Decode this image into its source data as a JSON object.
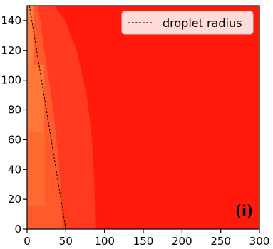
{
  "chart_data": {
    "type": "heatmap",
    "panel_label": "(i)",
    "xlim": [
      0,
      300
    ],
    "ylim": [
      0,
      150
    ],
    "x_ticks": [
      0,
      50,
      100,
      150,
      200,
      250,
      300
    ],
    "y_ticks": [
      0,
      20,
      40,
      60,
      80,
      100,
      120,
      140
    ],
    "x_tick_labels": [
      "0",
      "50",
      "100",
      "150",
      "200",
      "250",
      "300"
    ],
    "y_tick_labels": [
      "0",
      "20",
      "40",
      "60",
      "80",
      "100",
      "120",
      "140"
    ],
    "legend": {
      "entries": [
        "droplet radius"
      ],
      "location": "top-right"
    },
    "series": [
      {
        "name": "droplet radius",
        "style": "dashed",
        "color": "#000000",
        "x": [
          50,
          3
        ],
        "y": [
          0,
          150
        ]
      }
    ],
    "regions": [
      {
        "color": "#ff1a0c",
        "x": [
          0,
          300
        ],
        "y": [
          0,
          150
        ]
      },
      {
        "color": "#ff3a1e",
        "boundary_x": [
          88,
          87,
          84,
          77,
          64,
          49,
          35
        ],
        "boundary_y": [
          0,
          30,
          60,
          90,
          120,
          140,
          150
        ]
      },
      {
        "color": "#ff5a2c",
        "boundary_x": [
          46,
          44,
          40,
          34,
          25,
          17,
          14
        ],
        "boundary_y": [
          0,
          20,
          50,
          80,
          110,
          140,
          150
        ]
      },
      {
        "color": "#ff6a30",
        "x": [
          0,
          23
        ],
        "y": [
          16,
          65
        ]
      },
      {
        "color": "#ff7838",
        "x": [
          0,
          22
        ],
        "y": [
          65,
          110
        ]
      },
      {
        "color": "#ff8040",
        "x": [
          0,
          8
        ],
        "y": [
          110,
          150
        ]
      }
    ],
    "colors": {
      "background": "#ff1a0c",
      "legend_bg": "#ffffff"
    }
  }
}
